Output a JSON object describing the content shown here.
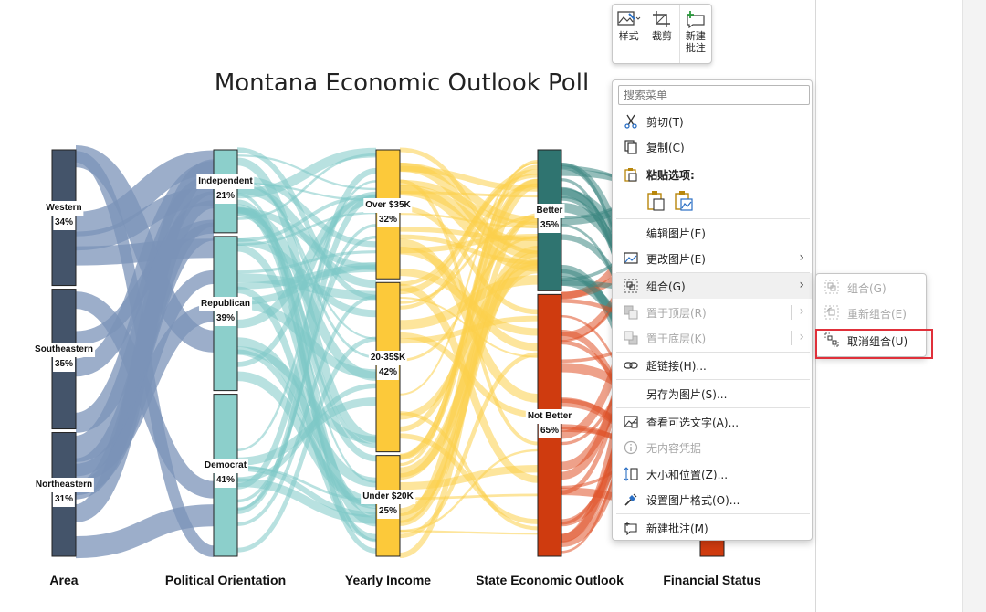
{
  "chart_data": {
    "type": "sankey",
    "title": "Montana Economic Outlook Poll",
    "stages": [
      "Area",
      "Political Orientation",
      "Yearly Income",
      "State Economic Outlook",
      "Financial Status"
    ],
    "nodes": [
      {
        "stage": 0,
        "name": "Western",
        "pct": "34%",
        "color": "#44546a"
      },
      {
        "stage": 0,
        "name": "Southeastern",
        "pct": "35%",
        "color": "#44546a"
      },
      {
        "stage": 0,
        "name": "Northeastern",
        "pct": "31%",
        "color": "#44546a"
      },
      {
        "stage": 1,
        "name": "Independent",
        "pct": "21%",
        "color": "#8ccfcb"
      },
      {
        "stage": 1,
        "name": "Republican",
        "pct": "39%",
        "color": "#8ccfcb"
      },
      {
        "stage": 1,
        "name": "Democrat",
        "pct": "41%",
        "color": "#8ccfcb"
      },
      {
        "stage": 2,
        "name": "Over $35K",
        "pct": "32%",
        "color": "#fcc93a"
      },
      {
        "stage": 2,
        "name": "20-35$K",
        "pct": "42%",
        "color": "#fcc93a"
      },
      {
        "stage": 2,
        "name": "Under $20K",
        "pct": "25%",
        "color": "#fcc93a"
      },
      {
        "stage": 3,
        "name": "Better",
        "pct": "35%",
        "color": "#2f7470"
      },
      {
        "stage": 3,
        "name": "Not Better",
        "pct": "65%",
        "color": "#cf3b0f"
      }
    ],
    "link_colors": [
      "#7b93b8",
      "#7ec8c6",
      "#fcd04a",
      "#3d8781",
      "#e0542a"
    ]
  },
  "mini_toolbar": {
    "style_label": "样式",
    "crop_label": "裁剪",
    "new_comment_line1": "新建",
    "new_comment_line2": "批注"
  },
  "context_menu": {
    "search_placeholder": "搜索菜单",
    "cut": "剪切(T)",
    "copy": "复制(C)",
    "paste_options": "粘贴选项:",
    "edit_picture": "编辑图片(E)",
    "change_picture": "更改图片(E)",
    "group": "组合(G)",
    "bring_to_front": "置于顶层(R)",
    "send_to_back": "置于底层(K)",
    "hyperlink": "超链接(H)...",
    "save_as_picture": "另存为图片(S)...",
    "view_alt_text": "查看可选文字(A)...",
    "no_content_credentials": "无内容凭据",
    "size_position": "大小和位置(Z)...",
    "format_picture": "设置图片格式(O)...",
    "new_comment": "新建批注(M)"
  },
  "submenu": {
    "group": "组合(G)",
    "regroup": "重新组合(E)",
    "ungroup": "取消组合(U)"
  },
  "colors": {
    "highlight": "#e0303a"
  }
}
